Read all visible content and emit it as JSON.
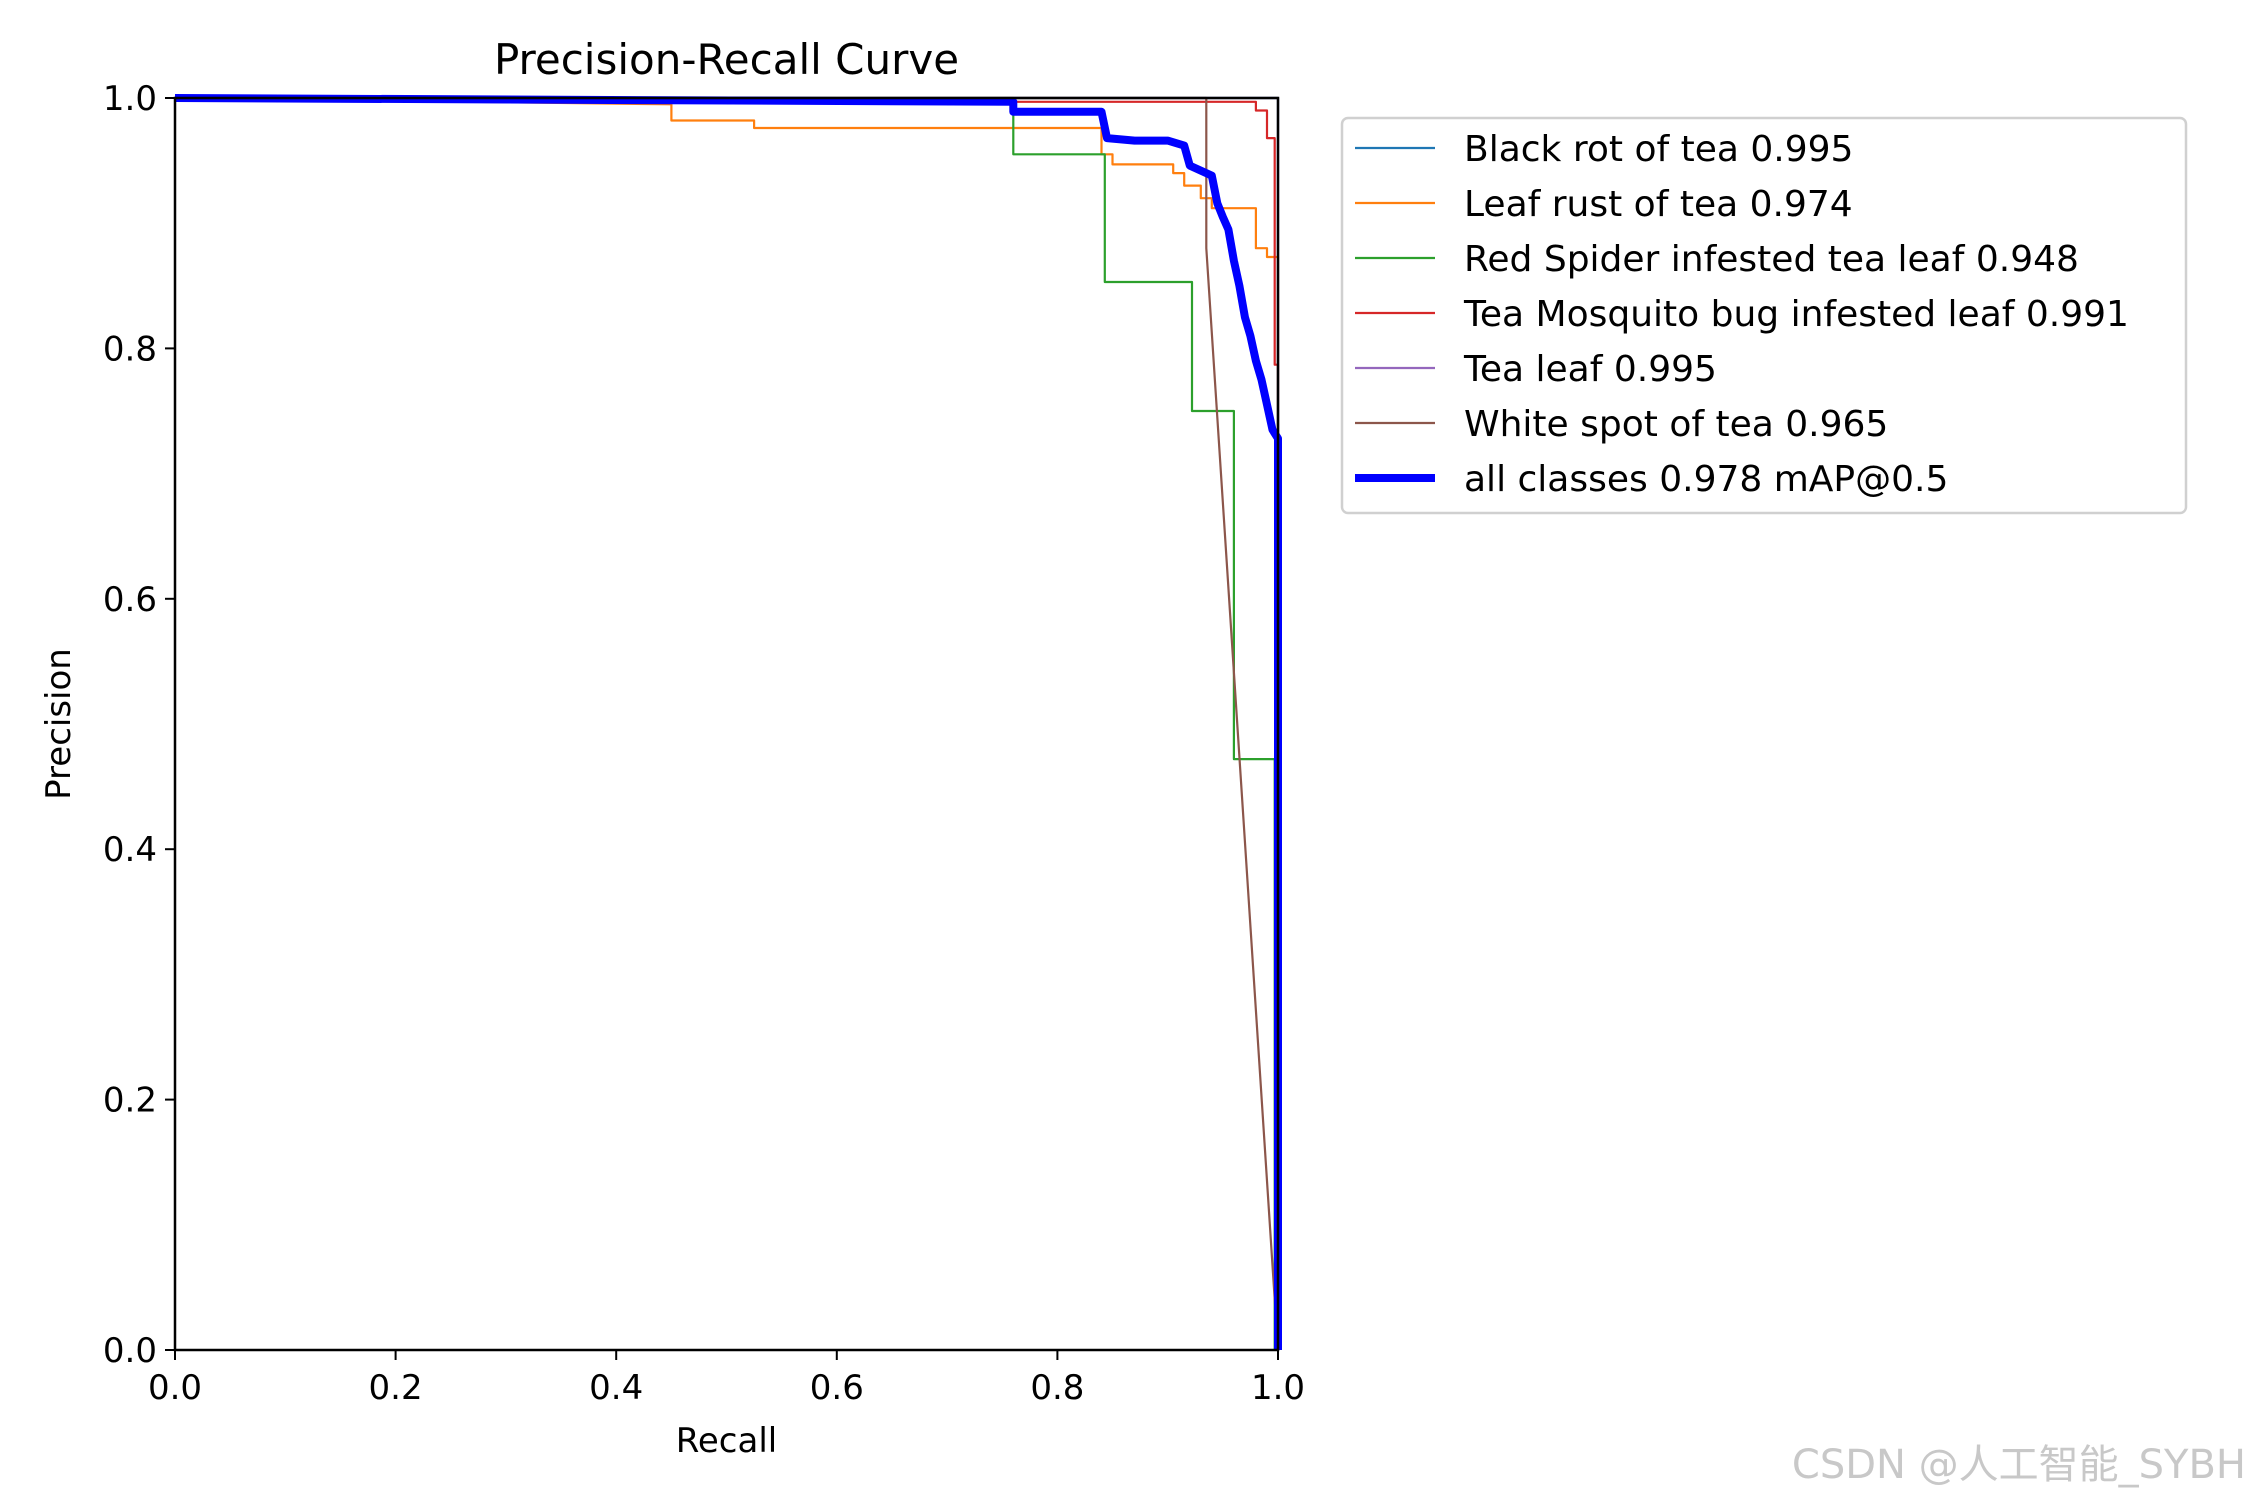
{
  "chart_data": {
    "type": "line",
    "title": "Precision-Recall Curve",
    "xlabel": "Recall",
    "ylabel": "Precision",
    "xlim": [
      0.0,
      1.0
    ],
    "ylim": [
      0.0,
      1.0
    ],
    "x_ticks": [
      "0.0",
      "0.2",
      "0.4",
      "0.6",
      "0.8",
      "1.0"
    ],
    "y_ticks": [
      "0.0",
      "0.2",
      "0.4",
      "0.6",
      "0.8",
      "1.0"
    ],
    "grid": false,
    "legend_position": "outside-right-top",
    "series": [
      {
        "name": "Black rot of tea 0.995",
        "color": "#1f77b4",
        "width": "thin",
        "points": [
          [
            0,
            1
          ],
          [
            0.995,
            1
          ],
          [
            1.0,
            1
          ],
          [
            1.0,
            0
          ]
        ]
      },
      {
        "name": "Leaf rust of tea 0.974",
        "color": "#ff7f0e",
        "width": "thin",
        "points": [
          [
            0,
            1
          ],
          [
            0.45,
            0.995
          ],
          [
            0.45,
            0.982
          ],
          [
            0.525,
            0.982
          ],
          [
            0.525,
            0.976
          ],
          [
            0.84,
            0.976
          ],
          [
            0.84,
            0.955
          ],
          [
            0.85,
            0.955
          ],
          [
            0.85,
            0.947
          ],
          [
            0.905,
            0.947
          ],
          [
            0.905,
            0.94
          ],
          [
            0.915,
            0.94
          ],
          [
            0.915,
            0.93
          ],
          [
            0.93,
            0.93
          ],
          [
            0.93,
            0.92
          ],
          [
            0.94,
            0.92
          ],
          [
            0.94,
            0.912
          ],
          [
            0.98,
            0.912
          ],
          [
            0.98,
            0.88
          ],
          [
            0.99,
            0.88
          ],
          [
            0.99,
            0.873
          ],
          [
            1.0,
            0.873
          ],
          [
            1.0,
            0
          ]
        ]
      },
      {
        "name": "Red Spider infested tea leaf 0.948",
        "color": "#2ca02c",
        "width": "thin",
        "points": [
          [
            0,
            1
          ],
          [
            0.76,
            1
          ],
          [
            0.76,
            0.955
          ],
          [
            0.843,
            0.955
          ],
          [
            0.843,
            0.853
          ],
          [
            0.922,
            0.853
          ],
          [
            0.922,
            0.75
          ],
          [
            0.96,
            0.75
          ],
          [
            0.96,
            0.472
          ],
          [
            0.997,
            0.472
          ],
          [
            0.997,
            0
          ]
        ]
      },
      {
        "name": "Tea Mosquito bug infested leaf 0.991",
        "color": "#d62728",
        "width": "thin",
        "points": [
          [
            0,
            1
          ],
          [
            0.28,
            1
          ],
          [
            0.28,
            0.997
          ],
          [
            0.98,
            0.997
          ],
          [
            0.98,
            0.99
          ],
          [
            0.99,
            0.99
          ],
          [
            0.99,
            0.968
          ],
          [
            0.997,
            0.968
          ],
          [
            0.997,
            0.787
          ],
          [
            1.0,
            0.787
          ],
          [
            1.0,
            0
          ]
        ]
      },
      {
        "name": "Tea leaf 0.995",
        "color": "#9467bd",
        "width": "thin",
        "points": [
          [
            0,
            1
          ],
          [
            1.0,
            1
          ],
          [
            1.0,
            0
          ]
        ]
      },
      {
        "name": "White spot of tea 0.965",
        "color": "#8c564b",
        "width": "thin",
        "points": [
          [
            0,
            1
          ],
          [
            0.935,
            1
          ],
          [
            0.935,
            0.88
          ],
          [
            1.0,
            0
          ]
        ]
      },
      {
        "name": "all classes 0.978 mAP@0.5",
        "color": "#0000ff",
        "width": "thick",
        "points": [
          [
            0,
            1
          ],
          [
            0.76,
            0.997
          ],
          [
            0.76,
            0.989
          ],
          [
            0.84,
            0.989
          ],
          [
            0.845,
            0.968
          ],
          [
            0.87,
            0.966
          ],
          [
            0.9,
            0.966
          ],
          [
            0.915,
            0.962
          ],
          [
            0.92,
            0.946
          ],
          [
            0.93,
            0.942
          ],
          [
            0.94,
            0.938
          ],
          [
            0.945,
            0.916
          ],
          [
            0.95,
            0.905
          ],
          [
            0.955,
            0.895
          ],
          [
            0.96,
            0.87
          ],
          [
            0.965,
            0.85
          ],
          [
            0.97,
            0.825
          ],
          [
            0.975,
            0.81
          ],
          [
            0.98,
            0.79
          ],
          [
            0.985,
            0.775
          ],
          [
            0.99,
            0.755
          ],
          [
            0.995,
            0.735
          ],
          [
            1.0,
            0.728
          ],
          [
            1.0,
            0.69
          ],
          [
            1.0,
            0
          ]
        ]
      }
    ]
  },
  "watermark": "CSDN @人工智能_SYBH"
}
